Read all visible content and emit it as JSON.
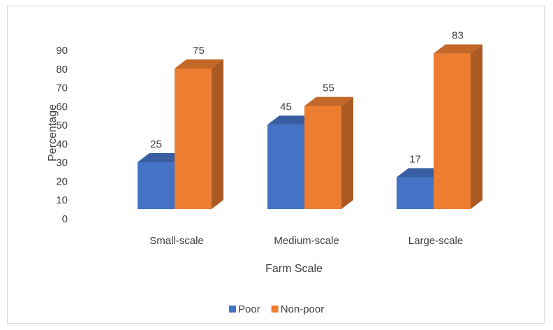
{
  "chart_data": {
    "type": "bar",
    "title": "",
    "xlabel": "Farm Scale",
    "ylabel": "Percentage",
    "categories": [
      "Small-scale",
      "Medium-scale",
      "Large-scale"
    ],
    "series": [
      {
        "name": "Poor",
        "values": [
          25,
          45,
          17
        ],
        "color": "#4472C4"
      },
      {
        "name": "Non-poor",
        "values": [
          75,
          55,
          83
        ],
        "color": "#ED7D31"
      }
    ],
    "ylim": [
      0,
      90
    ],
    "yticks": [
      "0",
      "10",
      "20",
      "30",
      "40",
      "50",
      "60",
      "70",
      "80",
      "90"
    ],
    "legend_position": "bottom",
    "grid": false,
    "style": "3d-clustered-column"
  }
}
